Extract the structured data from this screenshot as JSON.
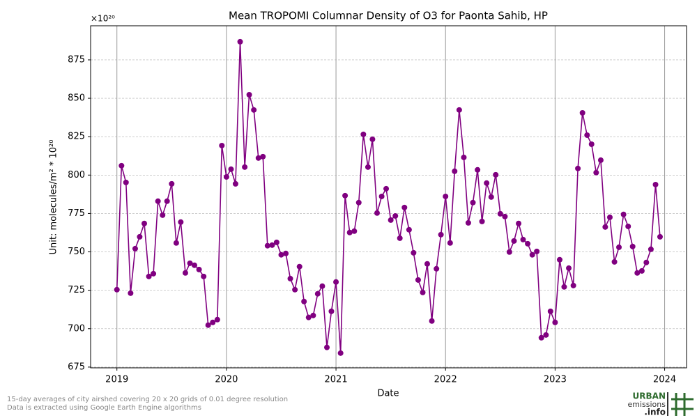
{
  "chart_data": {
    "type": "line",
    "title": "Mean TROPOMI Columnar Density of O3 for Paonta Sahib, HP",
    "x_label": "Date",
    "y_label": "Unit: molecules/m² * 10²⁰",
    "y_offset_label": "×10²⁰",
    "footnotes": [
      "15-day averages of city airshed covering 20 x 20 grids of 0.01 degree resolution",
      "Data is extracted using Google Earth Engine algorithms"
    ],
    "logo": [
      "URBAN",
      "emissions",
      ".info"
    ],
    "xlim": [
      2018.76,
      2024.2
    ],
    "xticks": [
      2019,
      2020,
      2021,
      2022,
      2023,
      2024
    ],
    "ylim": [
      674.5,
      897.2
    ],
    "yticks": [
      675,
      700,
      725,
      750,
      775,
      800,
      825,
      850,
      875
    ],
    "grid": true,
    "x": [
      2019.0,
      2019.042,
      2019.083,
      2019.125,
      2019.167,
      2019.208,
      2019.25,
      2019.292,
      2019.333,
      2019.375,
      2019.417,
      2019.458,
      2019.5,
      2019.542,
      2019.583,
      2019.625,
      2019.667,
      2019.708,
      2019.75,
      2019.792,
      2019.833,
      2019.875,
      2019.917,
      2019.958,
      2020.0,
      2020.042,
      2020.083,
      2020.125,
      2020.167,
      2020.208,
      2020.25,
      2020.292,
      2020.333,
      2020.375,
      2020.417,
      2020.458,
      2020.5,
      2020.542,
      2020.583,
      2020.625,
      2020.667,
      2020.708,
      2020.75,
      2020.792,
      2020.833,
      2020.875,
      2020.917,
      2020.958,
      2021.0,
      2021.042,
      2021.083,
      2021.125,
      2021.167,
      2021.208,
      2021.25,
      2021.292,
      2021.333,
      2021.375,
      2021.417,
      2021.458,
      2021.5,
      2021.542,
      2021.583,
      2021.625,
      2021.667,
      2021.708,
      2021.75,
      2021.792,
      2021.833,
      2021.875,
      2021.917,
      2021.958,
      2022.0,
      2022.042,
      2022.083,
      2022.125,
      2022.167,
      2022.208,
      2022.25,
      2022.292,
      2022.333,
      2022.375,
      2022.417,
      2022.458,
      2022.5,
      2022.542,
      2022.583,
      2022.625,
      2022.667,
      2022.708,
      2022.75,
      2022.792,
      2022.833,
      2022.875,
      2022.917,
      2022.958,
      2023.0,
      2023.042,
      2023.083,
      2023.125,
      2023.167,
      2023.208,
      2023.25,
      2023.292,
      2023.333,
      2023.375,
      2023.417,
      2023.458,
      2023.5,
      2023.542,
      2023.583,
      2023.625,
      2023.667,
      2023.708,
      2023.75,
      2023.792,
      2023.833,
      2023.875,
      2023.917,
      2023.958
    ],
    "series": [
      {
        "name": "O3",
        "color": "#800080",
        "values": [
          725.4,
          806.1,
          795.2,
          723.1,
          752.1,
          759.8,
          768.5,
          734.0,
          735.8,
          783.0,
          773.9,
          783.0,
          794.3,
          755.8,
          769.4,
          736.3,
          742.6,
          741.3,
          738.5,
          734.0,
          702.3,
          704.1,
          705.9,
          819.2,
          798.8,
          803.8,
          794.3,
          886.8,
          805.2,
          852.3,
          842.4,
          811.1,
          812.0,
          754.0,
          754.4,
          756.2,
          748.1,
          749.0,
          732.6,
          725.4,
          740.4,
          717.7,
          707.3,
          708.6,
          722.7,
          727.7,
          687.8,
          711.3,
          730.4,
          684.1,
          786.6,
          762.6,
          763.5,
          782.1,
          826.5,
          805.2,
          823.3,
          775.3,
          786.1,
          791.1,
          770.7,
          773.4,
          758.9,
          778.9,
          764.4,
          749.4,
          731.7,
          723.6,
          742.2,
          705.0,
          739.0,
          761.2,
          786.1,
          755.8,
          802.5,
          842.4,
          811.5,
          768.9,
          782.1,
          803.4,
          769.8,
          794.8,
          785.7,
          800.2,
          774.8,
          773.0,
          749.9,
          757.1,
          768.5,
          758.0,
          755.3,
          748.1,
          750.3,
          694.1,
          695.9,
          711.3,
          704.1,
          744.9,
          727.2,
          739.4,
          728.1,
          804.3,
          840.5,
          826.0,
          820.1,
          801.6,
          809.7,
          766.2,
          772.5,
          743.5,
          753.0,
          774.4,
          766.6,
          753.5,
          736.3,
          737.6,
          743.1,
          751.7,
          793.8,
          759.8
        ]
      }
    ]
  }
}
